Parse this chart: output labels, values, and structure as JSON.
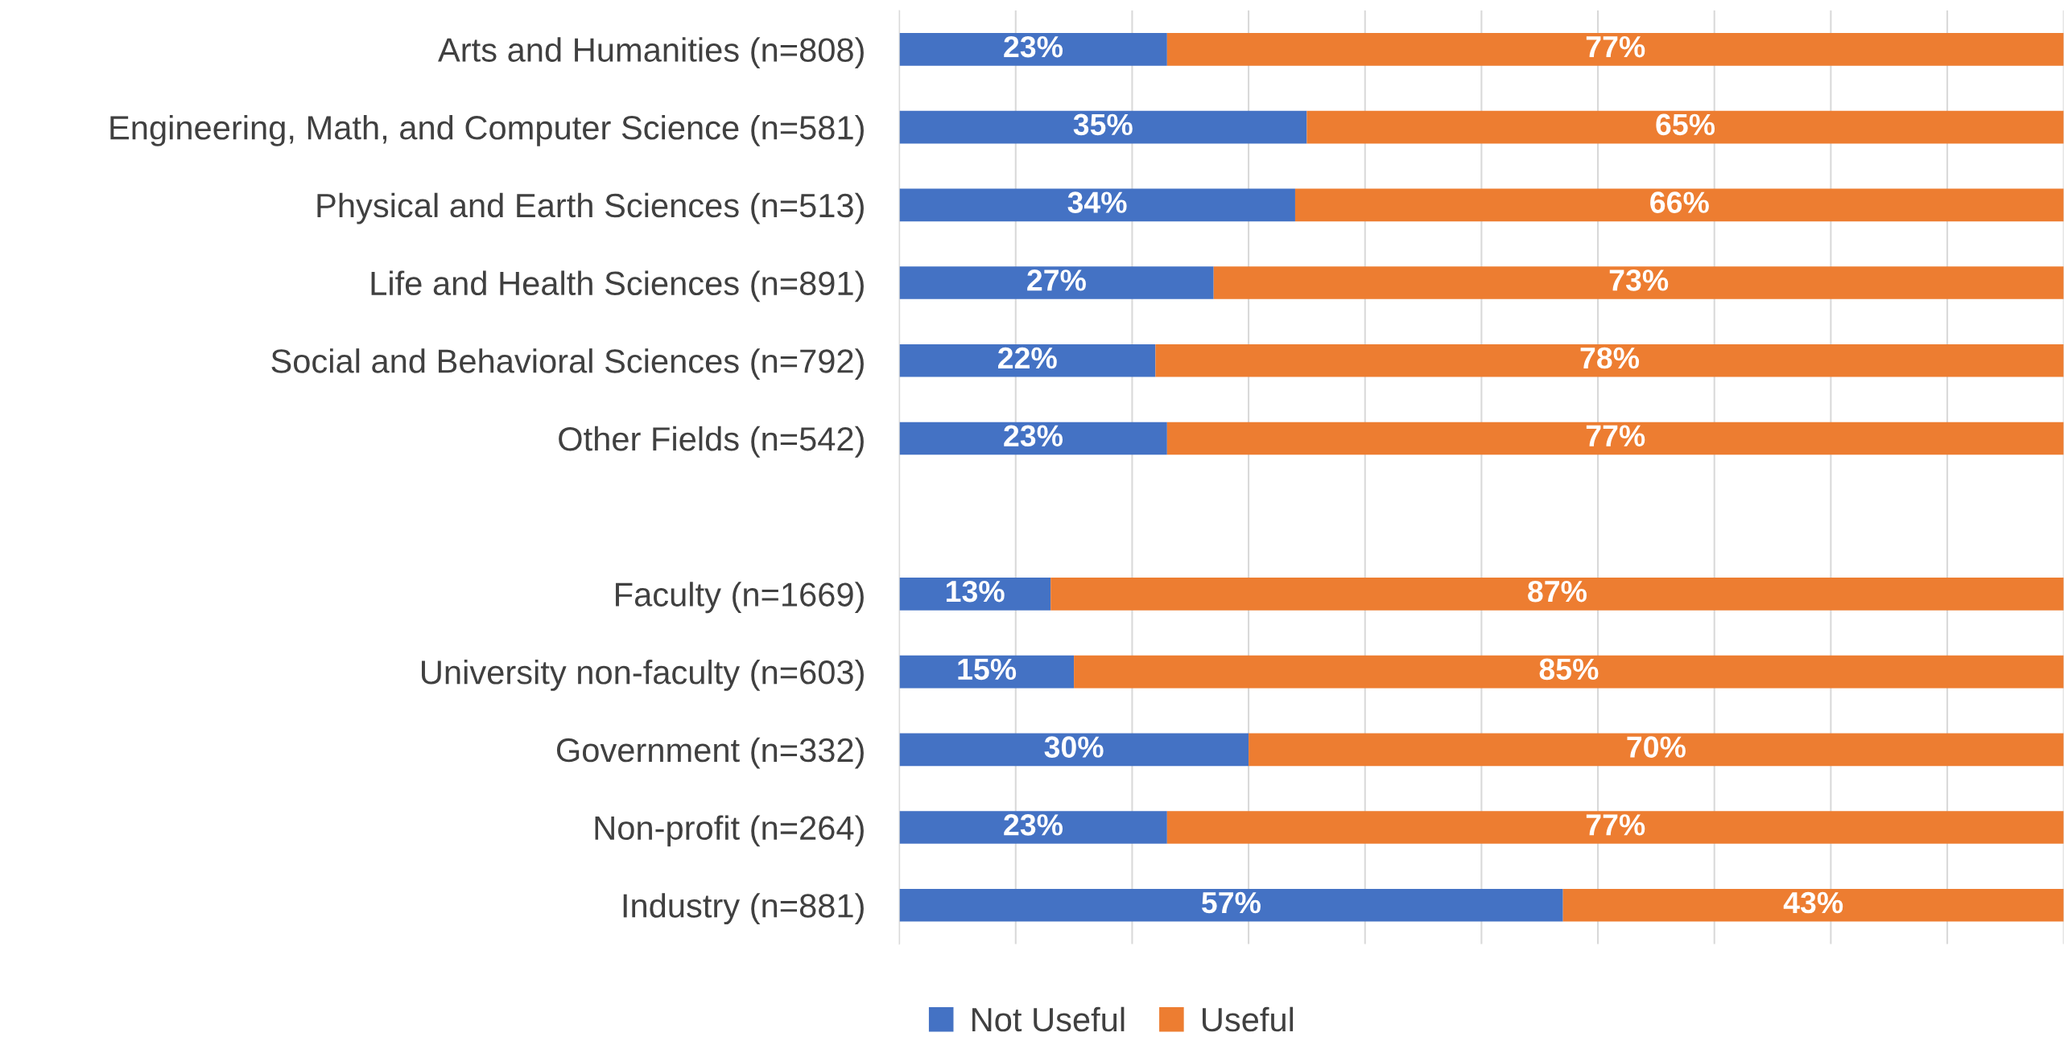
{
  "chart_data": {
    "type": "bar",
    "orientation": "horizontal",
    "stacked": true,
    "categories": [
      "Arts and Humanities (n=808)",
      "Engineering, Math, and Computer Science (n=581)",
      "Physical and Earth Sciences (n=513)",
      "Life and Health Sciences (n=891)",
      "Social and Behavioral Sciences (n=792)",
      "Other Fields (n=542)",
      null,
      "Faculty (n=1669)",
      "University non-faculty (n=603)",
      "Government (n=332)",
      "Non-profit (n=264)",
      "Industry (n=881)"
    ],
    "series": [
      {
        "name": "Not Useful",
        "color": "#4472c4",
        "values": [
          23,
          35,
          34,
          27,
          22,
          23,
          null,
          13,
          15,
          30,
          23,
          57
        ],
        "value_labels": [
          "23%",
          "35%",
          "34%",
          "27%",
          "22%",
          "23%",
          null,
          "13%",
          "15%",
          "30%",
          "23%",
          "57%"
        ]
      },
      {
        "name": "Useful",
        "color": "#ed7d31",
        "values": [
          77,
          65,
          66,
          73,
          78,
          77,
          null,
          87,
          85,
          70,
          77,
          43
        ],
        "value_labels": [
          "77%",
          "65%",
          "66%",
          "73%",
          "78%",
          "77%",
          null,
          "87%",
          "85%",
          "70%",
          "77%",
          "43%"
        ]
      }
    ],
    "xlim": [
      0,
      100
    ],
    "xticks": [
      {
        "value": 0,
        "label": null
      },
      {
        "value": 10,
        "label": null
      },
      {
        "value": 20,
        "label": null
      },
      {
        "value": 30,
        "label": null
      },
      {
        "value": 40,
        "label": null
      },
      {
        "value": 50,
        "label": null
      },
      {
        "value": 60,
        "label": null
      },
      {
        "value": 70,
        "label": null
      },
      {
        "value": 80,
        "label": null
      },
      {
        "value": 90,
        "label": null
      },
      {
        "value": 100,
        "label": null
      }
    ],
    "tick_labels": "y",
    "grid": "x",
    "legend": "bottom"
  }
}
